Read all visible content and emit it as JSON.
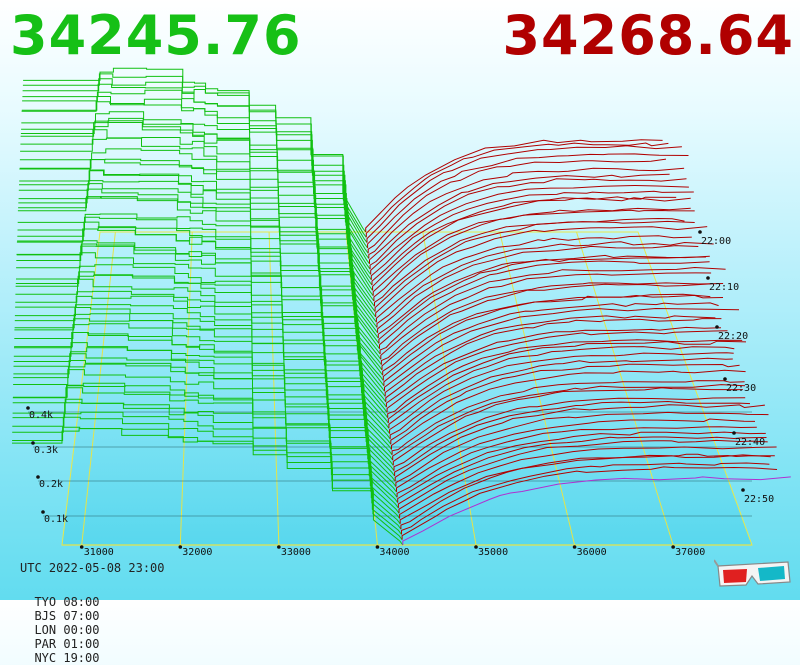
{
  "header": {
    "bid_price": "34245.76",
    "ask_price": "34268.64",
    "bid_color": "#16c016",
    "ask_color": "#b00000"
  },
  "footer": {
    "utc": "UTC 2022-05-08 23:00",
    "zones": [
      "TYO 08:00",
      "BJS 07:00",
      "LON 00:00",
      "PAR 01:00",
      "NYC 19:00"
    ]
  },
  "chart_data": {
    "type": "area",
    "title": "",
    "x_axis": {
      "label": "",
      "ticks": [
        31000,
        32000,
        33000,
        34000,
        35000,
        36000,
        37000
      ],
      "tick_labels": [
        "31000",
        "32000",
        "33000",
        "34000",
        "35000",
        "36000",
        "37000"
      ]
    },
    "depth_axis": {
      "label": "",
      "ticks": [
        0.1,
        0.2,
        0.3,
        0.4
      ],
      "tick_labels": [
        "0.1k",
        "0.2k",
        "0.3k",
        "0.4k"
      ]
    },
    "time_axis": {
      "label": "",
      "tick_labels": [
        "22:00",
        "22:10",
        "22:20",
        "22:30",
        "22:40",
        "22:50"
      ]
    },
    "series": [
      {
        "name": "",
        "color": "#11c011",
        "side": "bid"
      },
      {
        "name": "",
        "color": "#b00000",
        "side": "ask"
      }
    ],
    "snapshots": 60,
    "mid_price": 34257,
    "grid": true,
    "icon": "3d-glasses-icon"
  }
}
